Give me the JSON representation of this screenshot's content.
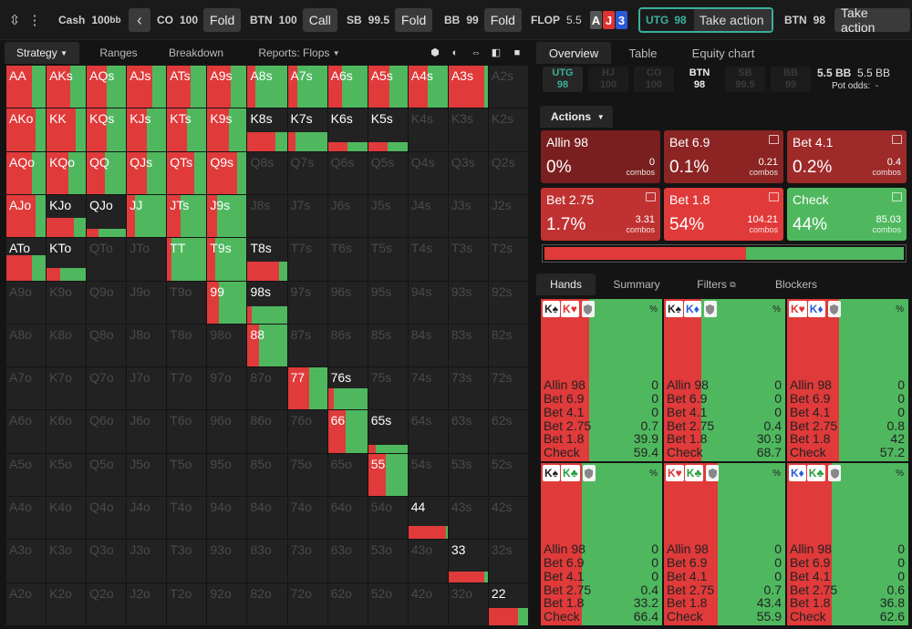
{
  "topbar": {
    "cash_label": "Cash",
    "cash_stack": "100",
    "cash_unit": "bb",
    "positions": [
      {
        "pos": "CO",
        "stack": "100",
        "action": "Fold"
      },
      {
        "pos": "BTN",
        "stack": "100",
        "action": "Call"
      },
      {
        "pos": "SB",
        "stack": "99.5",
        "action": "Fold"
      },
      {
        "pos": "BB",
        "stack": "99",
        "action": "Fold"
      }
    ],
    "flop_label": "FLOP",
    "flop_pot": "5.5",
    "board": [
      {
        "rank": "A",
        "color": "#555"
      },
      {
        "rank": "J",
        "color": "#d33"
      },
      {
        "rank": "3",
        "color": "#2a5bd7"
      }
    ],
    "current": {
      "pos": "UTG",
      "stack": "98",
      "action": "Take action"
    },
    "next": {
      "pos": "BTN",
      "stack": "98",
      "action": "Take action"
    }
  },
  "left_tabs": {
    "strategy": "Strategy",
    "ranges": "Ranges",
    "breakdown": "Breakdown",
    "reports": "Reports: Flops"
  },
  "colors": {
    "red": "#e03a3a",
    "green": "#4fb85f",
    "empty": "#222222"
  },
  "matrix": [
    [
      "AA",
      "AKs",
      "AQs",
      "AJs",
      "ATs",
      "A9s",
      "A8s",
      "A7s",
      "A6s",
      "A5s",
      "A4s",
      "A3s",
      "A2s"
    ],
    [
      "AKo",
      "KK",
      "KQs",
      "KJs",
      "KTs",
      "K9s",
      "K8s",
      "K7s",
      "K6s",
      "K5s",
      "K4s",
      "K3s",
      "K2s"
    ],
    [
      "AQo",
      "KQo",
      "QQ",
      "QJs",
      "QTs",
      "Q9s",
      "Q8s",
      "Q7s",
      "Q6s",
      "Q5s",
      "Q4s",
      "Q3s",
      "Q2s"
    ],
    [
      "AJo",
      "KJo",
      "QJo",
      "JJ",
      "JTs",
      "J9s",
      "J8s",
      "J7s",
      "J6s",
      "J5s",
      "J4s",
      "J3s",
      "J2s"
    ],
    [
      "ATo",
      "KTo",
      "QTo",
      "JTo",
      "TT",
      "T9s",
      "T8s",
      "T7s",
      "T6s",
      "T5s",
      "T4s",
      "T3s",
      "T2s"
    ],
    [
      "A9o",
      "K9o",
      "Q9o",
      "J9o",
      "T9o",
      "99",
      "98s",
      "97s",
      "96s",
      "95s",
      "94s",
      "93s",
      "92s"
    ],
    [
      "A8o",
      "K8o",
      "Q8o",
      "J8o",
      "T8o",
      "98o",
      "88",
      "87s",
      "86s",
      "85s",
      "84s",
      "83s",
      "82s"
    ],
    [
      "A7o",
      "K7o",
      "Q7o",
      "J7o",
      "T7o",
      "97o",
      "87o",
      "77",
      "76s",
      "75s",
      "74s",
      "73s",
      "72s"
    ],
    [
      "A6o",
      "K6o",
      "Q6o",
      "J6o",
      "T6o",
      "96o",
      "86o",
      "76o",
      "66",
      "65s",
      "64s",
      "63s",
      "62s"
    ],
    [
      "A5o",
      "K5o",
      "Q5o",
      "J5o",
      "T5o",
      "95o",
      "85o",
      "75o",
      "65o",
      "55",
      "54s",
      "53s",
      "52s"
    ],
    [
      "A4o",
      "K4o",
      "Q4o",
      "J4o",
      "T4o",
      "94o",
      "84o",
      "74o",
      "64o",
      "54o",
      "44",
      "43s",
      "42s"
    ],
    [
      "A3o",
      "K3o",
      "Q3o",
      "J3o",
      "T3o",
      "93o",
      "83o",
      "73o",
      "63o",
      "53o",
      "43o",
      "33",
      "32s"
    ],
    [
      "A2o",
      "K2o",
      "Q2o",
      "J2o",
      "T2o",
      "92o",
      "82o",
      "72o",
      "62o",
      "52o",
      "42o",
      "32o",
      "22"
    ]
  ],
  "matrix_fill": {
    "AA": [
      1,
      0.65
    ],
    "AKs": [
      1,
      0.6
    ],
    "AQs": [
      1,
      0.5
    ],
    "AJs": [
      1,
      0.65
    ],
    "ATs": [
      1,
      0.6
    ],
    "A9s": [
      1,
      0.6
    ],
    "A8s": [
      1,
      0.2
    ],
    "A7s": [
      1,
      0.25
    ],
    "A6s": [
      1,
      0.35
    ],
    "A5s": [
      1,
      0.55
    ],
    "A4s": [
      1,
      0.5
    ],
    "A3s": [
      1,
      0.9
    ],
    "AKo": [
      1,
      0.75
    ],
    "KK": [
      1,
      0.75
    ],
    "KQs": [
      1,
      0.5
    ],
    "KJs": [
      1,
      0.5
    ],
    "KTs": [
      1,
      0.5
    ],
    "K9s": [
      1,
      0.55
    ],
    "K8s": [
      0.45,
      0.7
    ],
    "K7s": [
      0.45,
      0.2
    ],
    "K6s": [
      0.2,
      0.5
    ],
    "K5s": [
      0.2,
      0.5
    ],
    "AQo": [
      1,
      0.65
    ],
    "KQo": [
      1,
      0.55
    ],
    "QQ": [
      1,
      0.45
    ],
    "QJs": [
      1,
      0.5
    ],
    "QTs": [
      1,
      0.7
    ],
    "Q9s": [
      1,
      0.75
    ],
    "AJo": [
      1,
      0.75
    ],
    "KJo": [
      0.45,
      0.7
    ],
    "QJo": [
      0.2,
      0.3
    ],
    "JJ": [
      1,
      0.2
    ],
    "JTs": [
      1,
      0.35
    ],
    "J9s": [
      1,
      0.25
    ],
    "ATo": [
      0.6,
      0.65
    ],
    "KTo": [
      0.3,
      0.35
    ],
    "TT": [
      1,
      0.1
    ],
    "T9s": [
      1,
      0.2
    ],
    "T8s": [
      0.45,
      0.8
    ],
    "99": [
      1,
      0.3
    ],
    "98s": [
      0.4,
      0.1
    ],
    "88": [
      1,
      0.3
    ],
    "77": [
      1,
      0.55
    ],
    "76s": [
      0.5,
      0.15
    ],
    "66": [
      1,
      0.45
    ],
    "65s": [
      0.2,
      0.2
    ],
    "55": [
      1,
      0.45
    ],
    "44": [
      0.3,
      0.95
    ],
    "33": [
      0.25,
      0.9
    ],
    "22": [
      0.4,
      0.75
    ]
  },
  "right_tabs": {
    "overview": "Overview",
    "table": "Table",
    "equity": "Equity chart"
  },
  "seats": [
    {
      "pos": "UTG",
      "stack": "98",
      "state": "act"
    },
    {
      "pos": "HJ",
      "stack": "100",
      "state": "folded"
    },
    {
      "pos": "CO",
      "stack": "100",
      "state": "folded"
    },
    {
      "pos": "BTN",
      "stack": "98",
      "state": "cur"
    },
    {
      "pos": "SB",
      "stack": "99.5",
      "state": "folded"
    },
    {
      "pos": "BB",
      "stack": "99",
      "state": "folded"
    }
  ],
  "pot": {
    "main": "5.5 BB",
    "side": "5.5 BB",
    "odds_label": "Pot odds:",
    "odds_value": "-"
  },
  "actions_label": "Actions",
  "actions": [
    {
      "name": "Allin 98",
      "pct": "0%",
      "combos": "0",
      "combos_label": "combos",
      "bg": "#7a1f1f"
    },
    {
      "name": "Bet 6.9",
      "pct": "0.1%",
      "combos": "0.21",
      "combos_label": "combos",
      "bg": "#8c2424"
    },
    {
      "name": "Bet 4.1",
      "pct": "0.2%",
      "combos": "0.4",
      "combos_label": "combos",
      "bg": "#9e2a2a"
    },
    {
      "name": "Bet 2.75",
      "pct": "1.7%",
      "combos": "3.31",
      "combos_label": "combos",
      "bg": "#c03232"
    },
    {
      "name": "Bet 1.8",
      "pct": "54%",
      "combos": "104.21",
      "combos_label": "combos",
      "bg": "#e03a3a"
    },
    {
      "name": "Check",
      "pct": "44%",
      "combos": "85.03",
      "combos_label": "combos",
      "bg": "#4fb85f"
    }
  ],
  "freq_bar": [
    {
      "v": 0.56,
      "color": "#e03a3a"
    },
    {
      "v": 0.44,
      "color": "#4fb85f"
    }
  ],
  "hand_tabs": {
    "hands": "Hands",
    "summary": "Summary",
    "filters": "Filters",
    "blockers": "Blockers"
  },
  "hands": [
    {
      "c1": "K♠",
      "c2": "K♥",
      "c1c": "#222",
      "c2c": "#d33",
      "red": 0.4,
      "vals": [
        "0",
        "0",
        "0",
        "0.7",
        "39.9",
        "59.4"
      ]
    },
    {
      "c1": "K♠",
      "c2": "K♦",
      "c1c": "#222",
      "c2c": "#2a5bd7",
      "red": 0.31,
      "vals": [
        "0",
        "0",
        "0",
        "0.4",
        "30.9",
        "68.7"
      ]
    },
    {
      "c1": "K♥",
      "c2": "K♦",
      "c1c": "#d33",
      "c2c": "#2a5bd7",
      "red": 0.43,
      "vals": [
        "0",
        "0",
        "0",
        "0.8",
        "42",
        "57.2"
      ]
    },
    {
      "c1": "K♠",
      "c2": "K♣",
      "c1c": "#222",
      "c2c": "#2a9d3a",
      "red": 0.34,
      "vals": [
        "0",
        "0",
        "0",
        "0.4",
        "33.2",
        "66.4"
      ]
    },
    {
      "c1": "K♥",
      "c2": "K♣",
      "c1c": "#d33",
      "c2c": "#2a9d3a",
      "red": 0.44,
      "vals": [
        "0",
        "0",
        "0",
        "0.7",
        "43.4",
        "55.9"
      ]
    },
    {
      "c1": "K♦",
      "c2": "K♣",
      "c1c": "#2a5bd7",
      "c2c": "#2a9d3a",
      "red": 0.37,
      "vals": [
        "0",
        "0",
        "0",
        "0.6",
        "36.8",
        "62.6"
      ]
    }
  ],
  "hand_row_labels": [
    "Allin 98",
    "Bet 6.9",
    "Bet 4.1",
    "Bet 2.75",
    "Bet 1.8",
    "Check"
  ],
  "pct_symbol": "%"
}
